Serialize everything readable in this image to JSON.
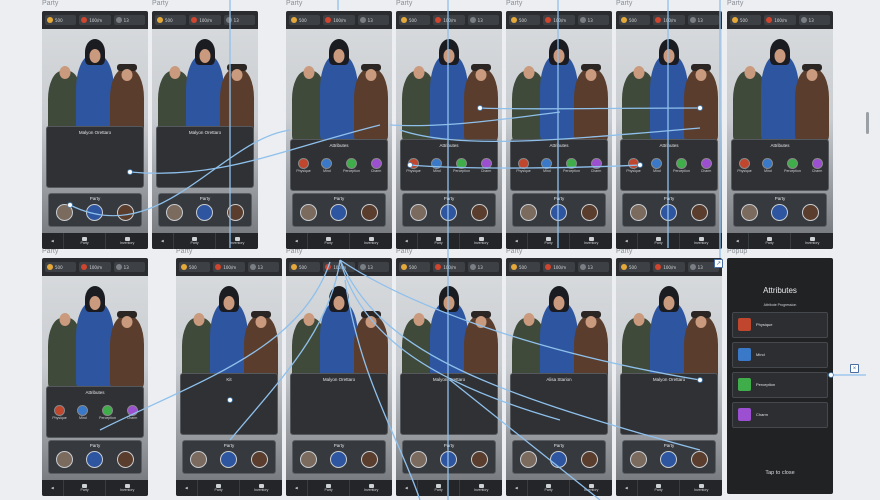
{
  "frames": {
    "top_labels": [
      "Party",
      "Party",
      "Party",
      "Party",
      "Party",
      "Party",
      "Party"
    ],
    "bottom_labels": [
      "Party",
      "Party",
      "Party",
      "Party",
      "Party",
      "Party",
      "Popup"
    ]
  },
  "resources": [
    "500",
    "100/m",
    "13"
  ],
  "panel_titles": {
    "attributes": "Attributes",
    "malyon": "Malyon Orettaro",
    "party": "Party",
    "kit": "Kit",
    "alisa": "Alisa Starion"
  },
  "attributes": [
    "Physique",
    "Mind",
    "Perception",
    "Charm"
  ],
  "nav": {
    "party": "Party",
    "inventory": "Inventory"
  },
  "popup": {
    "title": "Attributes",
    "subtitle": "Attribute Progression",
    "items": [
      {
        "name": "Physique",
        "color": "#c0462e"
      },
      {
        "name": "Mind",
        "color": "#3a78c8"
      },
      {
        "name": "Perception",
        "color": "#3fae4a"
      },
      {
        "name": "Charm",
        "color": "#9c4fd0"
      }
    ],
    "close": "Tap to close"
  },
  "colors": {
    "flow": "#8fc0ec",
    "screen_dark": "#2f3134"
  }
}
